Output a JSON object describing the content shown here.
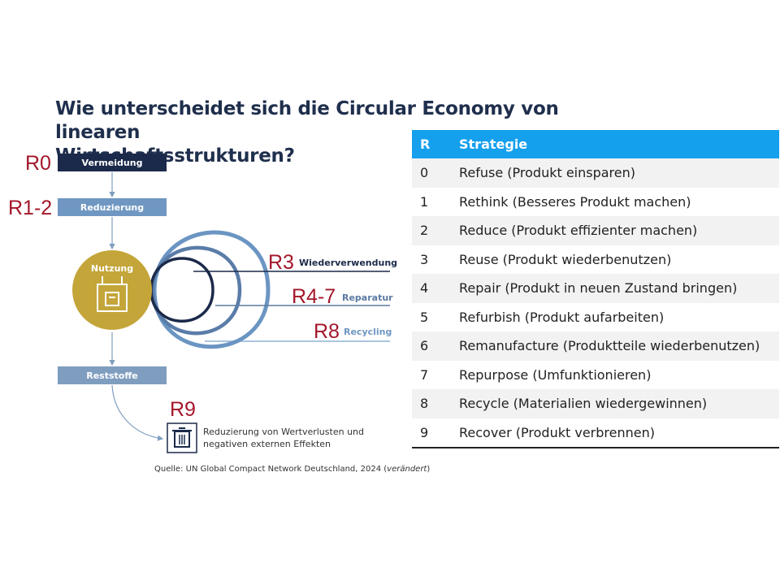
{
  "title": {
    "line1": "Wie unterscheidet sich die Circular Economy von linearen",
    "line2": "Wirtschaftsstrukturen?"
  },
  "diagram": {
    "r_labels": {
      "r0": "R0",
      "r1_2": "R1-2",
      "r3": "R3",
      "r4_7": "R4-7",
      "r8": "R8",
      "r9": "R9"
    },
    "boxes": {
      "vermeidung": "Vermeidung",
      "reduzierung": "Reduzierung",
      "nutzung": "Nutzung",
      "reststoffe": "Reststoffe"
    },
    "loops": {
      "wiederverwendung": "Wiederverwendung",
      "reparatur": "Reparatur",
      "recycling": "Recycling"
    },
    "trash_text": {
      "line1": "Reduzierung von Wertverlusten und",
      "line2": "negativen externen Effekten"
    },
    "icons": [
      "factory-icon",
      "trash-icon"
    ],
    "colors": {
      "dark_navy": "#1b2a4a",
      "mid_blue": "#5b87b5",
      "light_blue": "#8fb2d6",
      "gold": "#c4a53a",
      "red_label": "#a3172b",
      "table_header": "#15a0ee"
    }
  },
  "source": {
    "text": "Quelle: UN Global Compact Network Deutschland, 2024 (",
    "italic": "verändert",
    "close": ")"
  },
  "table": {
    "headers": [
      "R",
      "Strategie"
    ],
    "rows": [
      {
        "r": "0",
        "strategie": "Refuse (Produkt einsparen)"
      },
      {
        "r": "1",
        "strategie": "Rethink (Besseres Produkt machen)"
      },
      {
        "r": "2",
        "strategie": "Reduce (Produkt effizienter machen)"
      },
      {
        "r": "3",
        "strategie": "Reuse (Produkt wiederbenutzen)"
      },
      {
        "r": "4",
        "strategie": "Repair (Produkt in neuen Zustand bringen)"
      },
      {
        "r": "5",
        "strategie": "Refurbish (Produkt aufarbeiten)"
      },
      {
        "r": "6",
        "strategie": "Remanufacture (Produktteile wiederbenutzen)"
      },
      {
        "r": "7",
        "strategie": "Repurpose (Umfunktionieren)"
      },
      {
        "r": "8",
        "strategie": "Recycle (Materialien wiedergewinnen)"
      },
      {
        "r": "9",
        "strategie": "Recover (Produkt verbrennen)"
      }
    ]
  }
}
